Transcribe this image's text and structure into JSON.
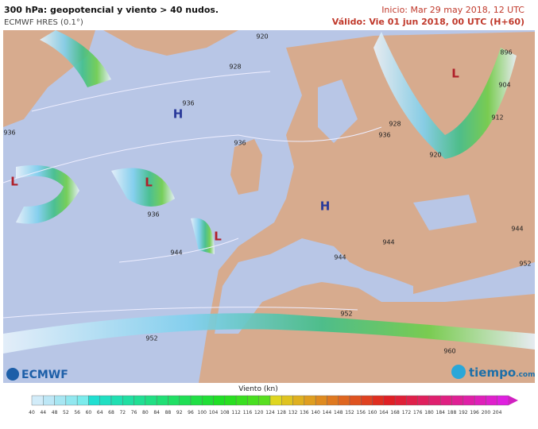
{
  "header": {
    "title": "300 hPa: geopotencial y viento > 40 nudos.",
    "model": "ECMWF HRES (0.1°)",
    "init": "Inicio: Mar 29 may 2018, 12 UTC",
    "valid": "Válido: Vie 01 jun 2018, 00 UTC (H+60)"
  },
  "map": {
    "contour_labels": [
      "920",
      "928",
      "936",
      "936",
      "936",
      "936",
      "944",
      "952",
      "952",
      "960",
      "944",
      "944",
      "944",
      "952",
      "928",
      "936",
      "920",
      "896",
      "904",
      "912"
    ],
    "systems": [
      "H",
      "H",
      "L",
      "L",
      "L",
      "L"
    ]
  },
  "logos": {
    "left": "ECMWF",
    "right": "tiempo",
    "right_suffix": ".com"
  },
  "legend": {
    "title": "Viento (kn)",
    "ticks": [
      "40",
      "44",
      "48",
      "52",
      "56",
      "60",
      "64",
      "68",
      "72",
      "76",
      "80",
      "84",
      "88",
      "92",
      "96",
      "100",
      "104",
      "108",
      "112",
      "116",
      "120",
      "124",
      "128",
      "132",
      "136",
      "140",
      "144",
      "148",
      "152",
      "156",
      "160",
      "164",
      "168",
      "172",
      "176",
      "180",
      "184",
      "188",
      "192",
      "196",
      "200",
      "204"
    ]
  }
}
